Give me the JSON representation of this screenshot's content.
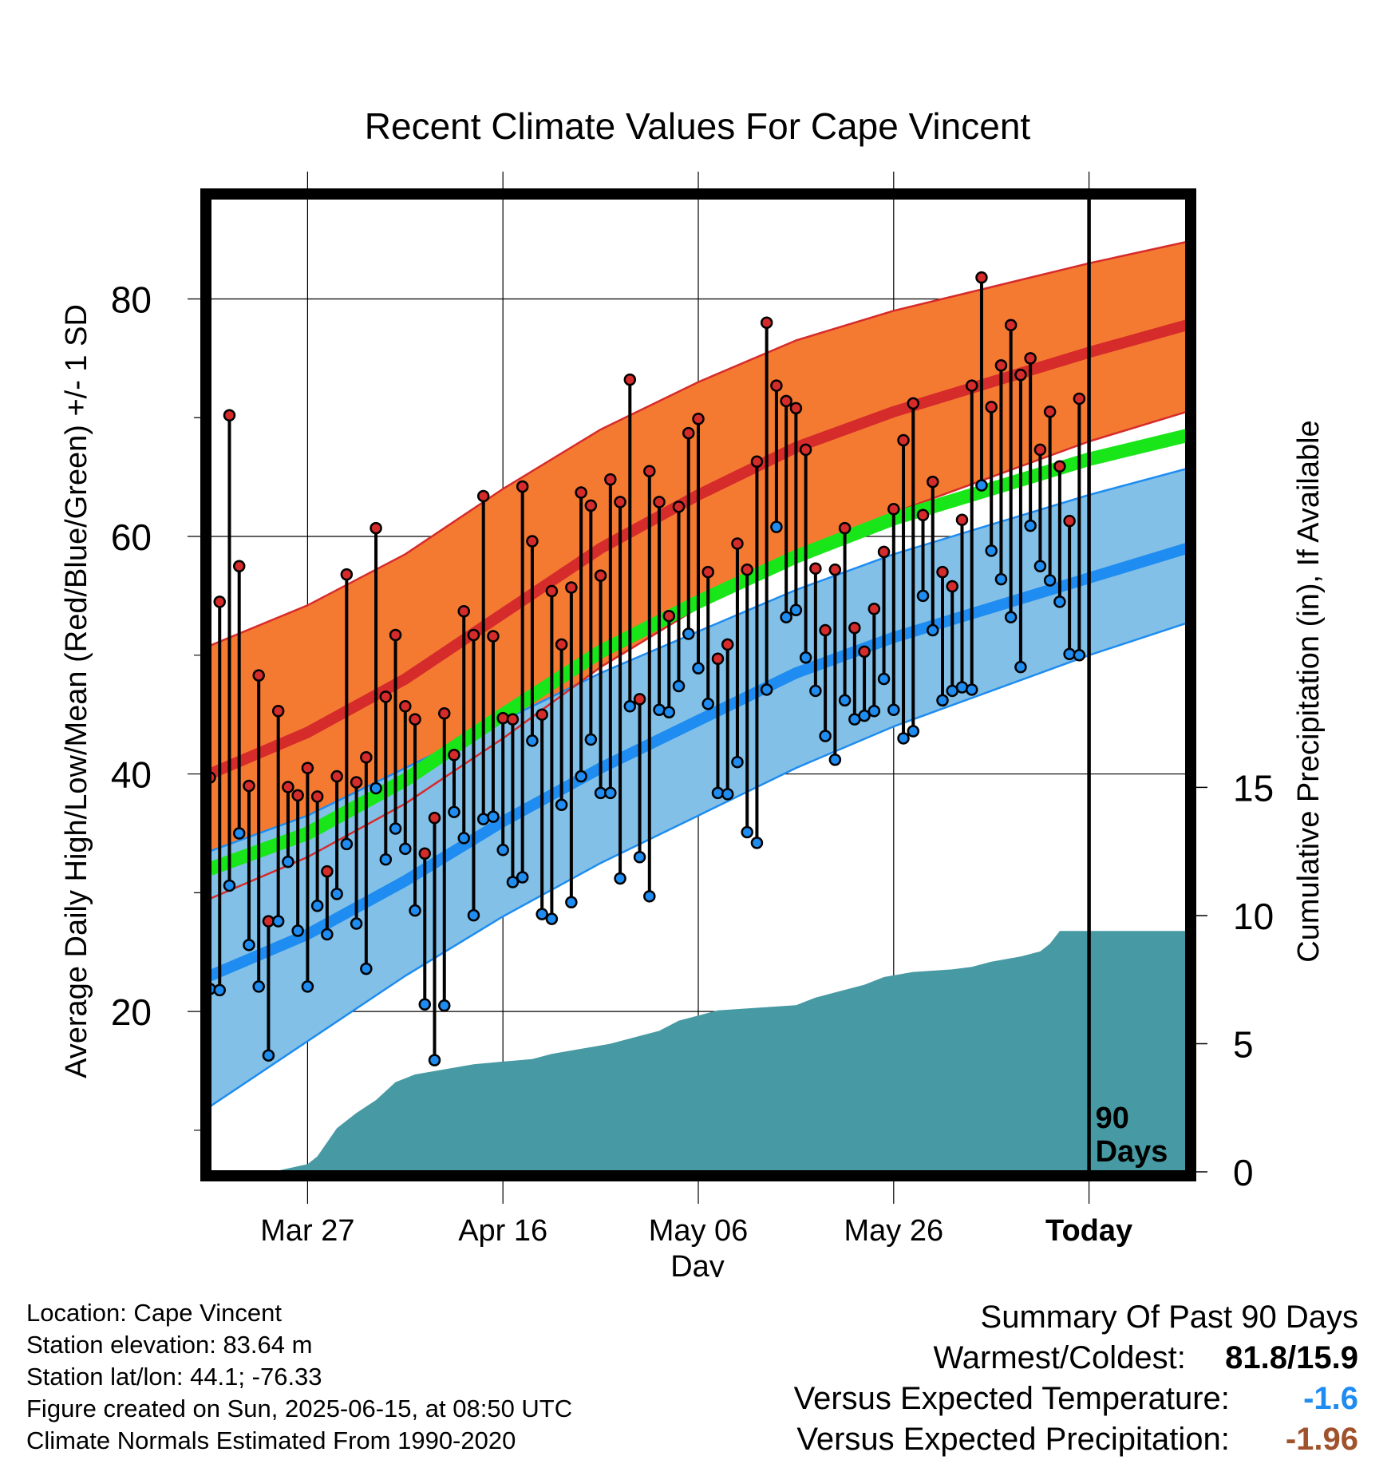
{
  "chart_data": {
    "type": "line",
    "title": "Recent Climate Values For Cape Vincent",
    "xlabel": "Day",
    "ylabel": "Average Daily High/Low/Mean (Red/Blue/Green) +/- 1 SD",
    "y2label": "Cumulative Precipitation (in), If Available",
    "x_tick_labels": [
      "Mar 27",
      "Apr 16",
      "May 06",
      "May 26",
      "Today"
    ],
    "y_ticks": [
      "20",
      "40",
      "60",
      "80"
    ],
    "y2_ticks": [
      "0",
      "5",
      "10",
      "15"
    ],
    "ylim": [
      6.5,
      88.5
    ],
    "y2lim": [
      0,
      38
    ],
    "xlim": [
      0,
      100
    ],
    "today_x": 90,
    "today_label": [
      "90",
      "Days"
    ],
    "days_observed": 90,
    "x_tick_days": [
      10,
      30,
      50,
      70,
      90
    ],
    "normal_high": [
      [
        0,
        40
      ],
      [
        10,
        43.5
      ],
      [
        20,
        48
      ],
      [
        30,
        53.5
      ],
      [
        40,
        59
      ],
      [
        50,
        63.5
      ],
      [
        60,
        67.5
      ],
      [
        70,
        70.5
      ],
      [
        80,
        73
      ],
      [
        90,
        75.5
      ],
      [
        100,
        77.8
      ]
    ],
    "normal_high_upper": [
      [
        0,
        50.8
      ],
      [
        10,
        54.2
      ],
      [
        20,
        58.5
      ],
      [
        30,
        64
      ],
      [
        40,
        69
      ],
      [
        50,
        73
      ],
      [
        60,
        76.5
      ],
      [
        70,
        79
      ],
      [
        80,
        81
      ],
      [
        90,
        83
      ],
      [
        100,
        84.8
      ]
    ],
    "normal_high_lower": [
      [
        0,
        29.5
      ],
      [
        10,
        33
      ],
      [
        20,
        37.5
      ],
      [
        30,
        43
      ],
      [
        40,
        49
      ],
      [
        50,
        54
      ],
      [
        60,
        58.5
      ],
      [
        70,
        62
      ],
      [
        80,
        65
      ],
      [
        90,
        68
      ],
      [
        100,
        70.5
      ]
    ],
    "normal_mean": [
      [
        0,
        32
      ],
      [
        10,
        35
      ],
      [
        20,
        39.5
      ],
      [
        30,
        45
      ],
      [
        40,
        50.3
      ],
      [
        50,
        54.5
      ],
      [
        60,
        58.3
      ],
      [
        70,
        61.5
      ],
      [
        80,
        64
      ],
      [
        90,
        66.5
      ],
      [
        100,
        68.5
      ]
    ],
    "normal_low": [
      [
        0,
        23
      ],
      [
        10,
        26.5
      ],
      [
        20,
        31
      ],
      [
        30,
        36
      ],
      [
        40,
        40.5
      ],
      [
        50,
        44.5
      ],
      [
        60,
        48.5
      ],
      [
        70,
        51.5
      ],
      [
        80,
        54
      ],
      [
        90,
        56.5
      ],
      [
        100,
        59
      ]
    ],
    "normal_low_upper": [
      [
        0,
        33.5
      ],
      [
        10,
        36.5
      ],
      [
        20,
        40.5
      ],
      [
        30,
        44.5
      ],
      [
        40,
        48.5
      ],
      [
        50,
        52
      ],
      [
        60,
        55.5
      ],
      [
        70,
        58.5
      ],
      [
        80,
        61
      ],
      [
        90,
        63.5
      ],
      [
        100,
        65.7
      ]
    ],
    "normal_low_lower": [
      [
        0,
        12
      ],
      [
        10,
        17.5
      ],
      [
        20,
        23
      ],
      [
        30,
        28
      ],
      [
        40,
        32.5
      ],
      [
        50,
        36.5
      ],
      [
        60,
        40.5
      ],
      [
        70,
        44
      ],
      [
        80,
        47
      ],
      [
        90,
        50
      ],
      [
        100,
        52.7
      ]
    ],
    "daily_high": [
      39.7,
      54.5,
      70.2,
      57.5,
      39,
      48.3,
      27.6,
      45.3,
      38.9,
      38.2,
      40.5,
      38.1,
      31.8,
      39.8,
      56.8,
      39.3,
      41.4,
      60.7,
      46.5,
      51.7,
      45.7,
      44.6,
      33.3,
      36.3,
      45.1,
      41.6,
      53.7,
      51.7,
      63.4,
      51.6,
      44.7,
      44.6,
      64.2,
      59.6,
      45,
      55.4,
      50.9,
      55.7,
      63.7,
      62.6,
      56.7,
      64.8,
      62.9,
      73.2,
      46.3,
      65.5,
      62.9,
      53.3,
      62.5,
      68.7,
      69.9,
      57,
      49.7,
      50.9,
      59.4,
      57.2,
      66.3,
      78,
      72.7,
      71.4,
      70.8,
      67.3,
      57.3,
      52.1,
      57.2,
      60.7,
      52.3,
      50.3,
      53.9,
      58.7,
      62.3,
      68.1,
      71.2,
      61.8,
      64.6,
      57,
      55.8,
      61.4,
      72.7,
      81.8,
      70.9,
      74.4,
      77.8,
      73.6,
      75,
      67.3,
      70.5,
      65.9,
      61.3,
      71.6
    ],
    "daily_low": [
      21.9,
      21.8,
      30.6,
      35,
      25.6,
      22.1,
      16.3,
      27.6,
      32.6,
      26.8,
      22.1,
      28.9,
      26.5,
      29.9,
      34.1,
      27.4,
      23.6,
      38.8,
      32.8,
      35.4,
      33.7,
      28.5,
      20.6,
      15.9,
      20.5,
      36.8,
      34.6,
      28.1,
      36.2,
      36.4,
      33.6,
      30.9,
      31.3,
      42.8,
      28.2,
      27.8,
      37.4,
      29.2,
      39.8,
      42.9,
      38.4,
      38.4,
      31.2,
      45.7,
      33,
      29.7,
      45.4,
      45.2,
      47.4,
      51.8,
      48.9,
      45.9,
      38.4,
      38.3,
      41,
      35.1,
      34.2,
      47.1,
      60.8,
      53.2,
      53.8,
      49.8,
      47,
      43.2,
      41.2,
      46.2,
      44.6,
      44.9,
      45.3,
      48,
      45.4,
      43,
      43.6,
      55,
      52.1,
      46.2,
      47,
      47.3,
      47.1,
      64.3,
      58.8,
      56.4,
      53.2,
      49,
      60.9,
      57.5,
      56.3,
      54.5,
      50.1,
      50
    ],
    "cumulative_precip": [
      [
        0,
        0.05
      ],
      [
        7,
        0.05
      ],
      [
        10,
        0.3
      ],
      [
        11,
        0.6
      ],
      [
        13,
        1.7
      ],
      [
        15,
        2.3
      ],
      [
        17,
        2.8
      ],
      [
        19,
        3.5
      ],
      [
        21,
        3.8
      ],
      [
        24,
        4.0
      ],
      [
        27,
        4.2
      ],
      [
        30,
        4.3
      ],
      [
        33,
        4.4
      ],
      [
        35,
        4.6
      ],
      [
        38,
        4.8
      ],
      [
        41,
        5.0
      ],
      [
        44,
        5.3
      ],
      [
        46,
        5.5
      ],
      [
        48,
        5.9
      ],
      [
        50,
        6.1
      ],
      [
        52,
        6.3
      ],
      [
        56,
        6.4
      ],
      [
        60,
        6.5
      ],
      [
        62,
        6.8
      ],
      [
        64,
        7.0
      ],
      [
        67,
        7.3
      ],
      [
        69,
        7.6
      ],
      [
        72,
        7.8
      ],
      [
        76,
        7.9
      ],
      [
        78,
        8.0
      ],
      [
        80,
        8.2
      ],
      [
        83,
        8.4
      ],
      [
        85,
        8.6
      ],
      [
        86,
        8.9
      ],
      [
        87,
        9.4
      ],
      [
        100,
        9.4
      ]
    ],
    "colors": {
      "high_band": "#f47a32",
      "high_line": "#d62b2b",
      "mean_line": "#19e619",
      "low_band": "#82c0e8",
      "low_line": "#1e8cf0",
      "precip": "#479aa3",
      "high_marker": "#d62b2b",
      "low_marker": "#1e8cf0"
    }
  },
  "info": {
    "location": "Location: Cape Vincent",
    "elevation": "Station elevation: 83.64 m",
    "latlon": "Station lat/lon: 44.1; -76.33",
    "created": "Figure created on Sun, 2025-06-15, at 08:50 UTC",
    "normals": "Climate Normals Estimated From 1990-2020"
  },
  "summary": {
    "title": "Summary Of Past 90 Days",
    "warm_cold_label": "Warmest/Coldest:",
    "warm_cold_value": "81.8/15.9",
    "temp_label": "Versus Expected Temperature:",
    "temp_value": "-1.6",
    "temp_color": "#1e8cf0",
    "precip_label": "Versus Expected Precipitation:",
    "precip_value": "-1.96",
    "precip_color": "#a0522d"
  }
}
